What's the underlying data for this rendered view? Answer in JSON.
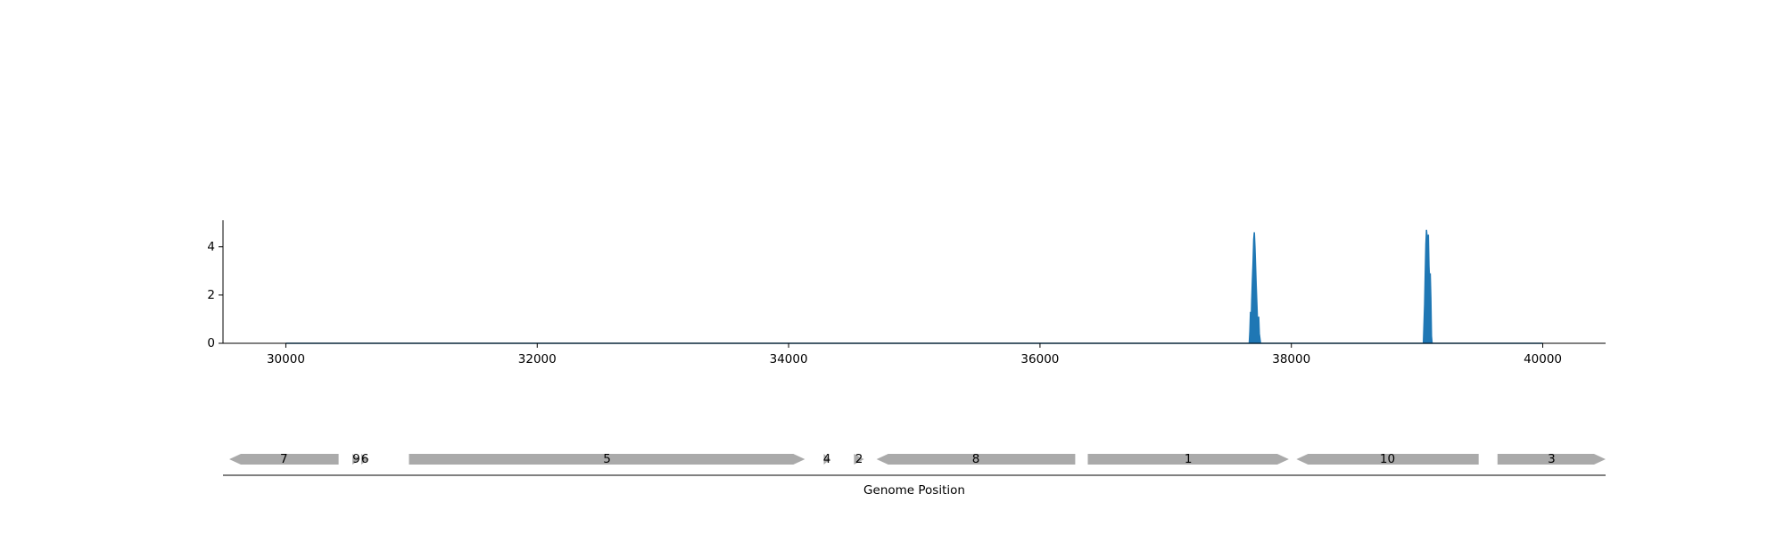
{
  "chart_data": [
    {
      "type": "area",
      "title": "",
      "xlabel": "",
      "ylabel": "",
      "xlim": [
        29500,
        40500
      ],
      "ylim": [
        0,
        5.1
      ],
      "x_ticks": [
        30000,
        32000,
        34000,
        36000,
        38000,
        40000
      ],
      "y_ticks": [
        0,
        2,
        4
      ],
      "grid": false,
      "legend": "none",
      "color": "#1f77b4",
      "series": [
        {
          "x": [
            30000,
            37665,
            37670,
            37675,
            37680,
            37685,
            37690,
            37695,
            37700,
            37705,
            37710,
            37715,
            37720,
            37725,
            37730,
            37735,
            37740,
            37745,
            37750,
            37755,
            37760,
            37765,
            37770,
            39050,
            39055,
            39060,
            39065,
            39070,
            39075,
            39080,
            39085,
            39090,
            39095,
            39100,
            39105,
            39110,
            39115,
            39120,
            39125,
            40000
          ],
          "y": [
            0,
            0,
            0.5,
            1.3,
            0.8,
            1.8,
            2.6,
            3.4,
            4.3,
            4.6,
            4.0,
            3.2,
            2.4,
            1.7,
            1.0,
            0.6,
            1.1,
            0.4,
            0.2,
            0,
            0,
            0,
            0,
            0,
            0.8,
            1.6,
            2.9,
            4.1,
            4.7,
            4.4,
            3.6,
            4.5,
            3.2,
            2.6,
            2.9,
            1.9,
            0.3,
            0,
            0,
            0
          ]
        }
      ]
    },
    {
      "type": "gene-map",
      "xlabel": "Genome Position",
      "xlim": [
        29500,
        40500
      ],
      "color": "#aaaaaa",
      "genes": [
        {
          "label": "7",
          "start": 29550,
          "end": 30420,
          "strand": "-"
        },
        {
          "label": "9",
          "start": 30530,
          "end": 30590,
          "strand": "+"
        },
        {
          "label": "6",
          "start": 30600,
          "end": 30660,
          "strand": "+"
        },
        {
          "label": "5",
          "start": 30980,
          "end": 34130,
          "strand": "+"
        },
        {
          "label": "4",
          "start": 34280,
          "end": 34330,
          "strand": "+"
        },
        {
          "label": "2",
          "start": 34520,
          "end": 34600,
          "strand": "+"
        },
        {
          "label": "8",
          "start": 34700,
          "end": 36280,
          "strand": "-"
        },
        {
          "label": "1",
          "start": 36380,
          "end": 37980,
          "strand": "+"
        },
        {
          "label": "10",
          "start": 38040,
          "end": 39490,
          "strand": "-"
        },
        {
          "label": "3",
          "start": 39640,
          "end": 40500,
          "strand": "+"
        }
      ]
    }
  ]
}
